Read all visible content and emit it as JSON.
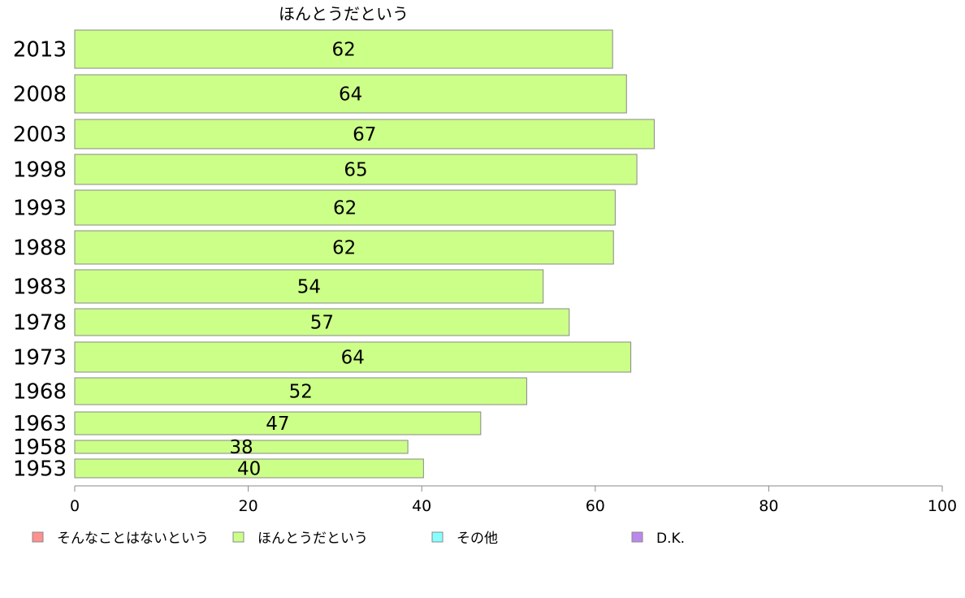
{
  "chart_data": {
    "type": "bar",
    "orientation": "horizontal",
    "title": "ほんとうだという",
    "categories": [
      "2013",
      "2008",
      "2003",
      "1998",
      "1993",
      "1988",
      "1983",
      "1978",
      "1973",
      "1968",
      "1963",
      "1958",
      "1953"
    ],
    "series": [
      {
        "name": "ほんとうだという",
        "color": "#ccff88",
        "values": [
          62,
          64,
          67,
          65,
          62,
          62,
          54,
          57,
          64,
          52,
          47,
          38,
          40
        ],
        "bar_values": [
          62,
          63.6,
          66.8,
          64.8,
          62.3,
          62.1,
          54,
          57,
          64.1,
          52.1,
          46.8,
          38.4,
          40.2
        ]
      }
    ],
    "xlim": [
      0,
      100
    ],
    "xticks": [
      "0",
      "20",
      "40",
      "60",
      "80",
      "100"
    ],
    "xlabel": "",
    "ylabel": "",
    "grid": false,
    "legend_position": "bottom",
    "legend": [
      {
        "label": "そんなことはないという",
        "color": "#ff9090"
      },
      {
        "label": "ほんとうだという",
        "color": "#ccff88"
      },
      {
        "label": "その他",
        "color": "#88ffff"
      },
      {
        "label": "D.K.",
        "color": "#bb88ee"
      }
    ]
  }
}
